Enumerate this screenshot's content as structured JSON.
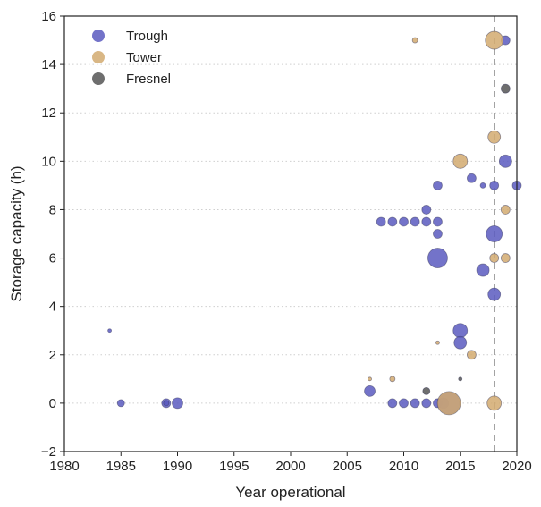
{
  "chart_data": {
    "type": "scatter",
    "title": "",
    "xlabel": "Year operational",
    "ylabel": "Storage capacity (h)",
    "xlim": [
      1980,
      2020
    ],
    "ylim": [
      -2,
      16
    ],
    "xticks": [
      "1980",
      "1985",
      "1990",
      "1995",
      "2000",
      "2005",
      "2010",
      "2015",
      "2020"
    ],
    "yticks": [
      "−2",
      "0",
      "2",
      "4",
      "6",
      "8",
      "10",
      "12",
      "14",
      "16"
    ],
    "grid": "horizontal dotted",
    "legend_position": "top-left",
    "reference_line": {
      "axis": "x",
      "value": 2018,
      "style": "dashed"
    },
    "series": [
      {
        "name": "Trough",
        "color": "#5b5bbf",
        "points": [
          {
            "x": 1984,
            "y": 3,
            "s": 2
          },
          {
            "x": 1985,
            "y": 0,
            "s": 4
          },
          {
            "x": 1989,
            "y": 0,
            "s": 5
          },
          {
            "x": 1989,
            "y": 0,
            "s": 3
          },
          {
            "x": 1990,
            "y": 0,
            "s": 6
          },
          {
            "x": 2007,
            "y": 0.5,
            "s": 6
          },
          {
            "x": 2008,
            "y": 7.5,
            "s": 5
          },
          {
            "x": 2009,
            "y": 7.5,
            "s": 5
          },
          {
            "x": 2010,
            "y": 7.5,
            "s": 5
          },
          {
            "x": 2011,
            "y": 7.5,
            "s": 5
          },
          {
            "x": 2012,
            "y": 7.5,
            "s": 5
          },
          {
            "x": 2013,
            "y": 7.5,
            "s": 5
          },
          {
            "x": 2012,
            "y": 8,
            "s": 5
          },
          {
            "x": 2013,
            "y": 9,
            "s": 5
          },
          {
            "x": 2013,
            "y": 7,
            "s": 5
          },
          {
            "x": 2013,
            "y": 6,
            "s": 11
          },
          {
            "x": 2009,
            "y": 0,
            "s": 5
          },
          {
            "x": 2010,
            "y": 0,
            "s": 5
          },
          {
            "x": 2011,
            "y": 0,
            "s": 5
          },
          {
            "x": 2012,
            "y": 0,
            "s": 5
          },
          {
            "x": 2013,
            "y": 0,
            "s": 5
          },
          {
            "x": 2013.5,
            "y": 0,
            "s": 6
          },
          {
            "x": 2014,
            "y": 0,
            "s": 12
          },
          {
            "x": 2015,
            "y": 3,
            "s": 8
          },
          {
            "x": 2015,
            "y": 2.5,
            "s": 7
          },
          {
            "x": 2016,
            "y": 9.3,
            "s": 5
          },
          {
            "x": 2017,
            "y": 9,
            "s": 3
          },
          {
            "x": 2017,
            "y": 5.5,
            "s": 7
          },
          {
            "x": 2018,
            "y": 9,
            "s": 5
          },
          {
            "x": 2018,
            "y": 7,
            "s": 9
          },
          {
            "x": 2018,
            "y": 4.5,
            "s": 7
          },
          {
            "x": 2019,
            "y": 15,
            "s": 5
          },
          {
            "x": 2019,
            "y": 10,
            "s": 7
          },
          {
            "x": 2020,
            "y": 9,
            "s": 5
          }
        ]
      },
      {
        "name": "Tower",
        "color": "#d2aa70",
        "points": [
          {
            "x": 2007,
            "y": 1,
            "s": 2
          },
          {
            "x": 2009,
            "y": 1,
            "s": 3
          },
          {
            "x": 2011,
            "y": 15,
            "s": 3
          },
          {
            "x": 2013,
            "y": 2.5,
            "s": 2
          },
          {
            "x": 2014,
            "y": 0,
            "s": 13
          },
          {
            "x": 2015,
            "y": 10,
            "s": 8
          },
          {
            "x": 2016,
            "y": 2,
            "s": 5
          },
          {
            "x": 2018,
            "y": 15,
            "s": 10
          },
          {
            "x": 2018,
            "y": 11,
            "s": 7
          },
          {
            "x": 2018,
            "y": 6,
            "s": 5
          },
          {
            "x": 2018,
            "y": 0,
            "s": 8
          },
          {
            "x": 2019,
            "y": 8,
            "s": 5
          },
          {
            "x": 2019,
            "y": 6,
            "s": 5
          }
        ]
      },
      {
        "name": "Fresnel",
        "color": "#555555",
        "points": [
          {
            "x": 2012,
            "y": 0.5,
            "s": 4
          },
          {
            "x": 2015,
            "y": 1,
            "s": 2
          },
          {
            "x": 2019,
            "y": 13,
            "s": 5
          }
        ]
      }
    ]
  }
}
